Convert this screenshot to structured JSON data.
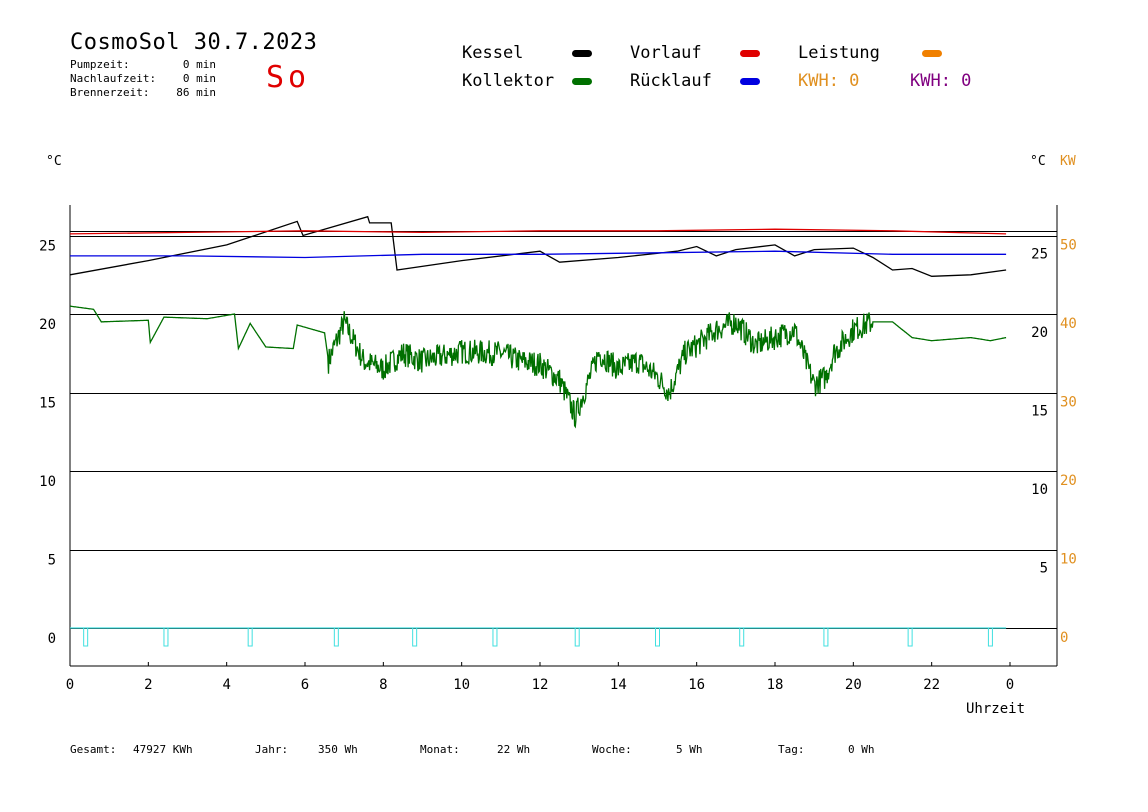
{
  "header": {
    "title": "CosmoSol 30.7.2023",
    "day_name": "So",
    "stats": [
      {
        "label": "Pumpzeit:",
        "value": "0 min"
      },
      {
        "label": "Nachlaufzeit:",
        "value": "0 min"
      },
      {
        "label": "Brennerzeit:",
        "value": "86 min"
      }
    ]
  },
  "legend": {
    "kessel": {
      "label": "Kessel",
      "color": "#000000"
    },
    "kollektor": {
      "label": "Kollektor",
      "color": "#007000"
    },
    "vorlauf": {
      "label": "Vorlauf",
      "color": "#e00000"
    },
    "ruecklauf": {
      "label": "Rücklauf",
      "color": "#0000e0"
    },
    "leistung": {
      "label": "Leistung",
      "color": "#f08000"
    },
    "kwh1": {
      "text": "KWH: 0",
      "color": "#e09020"
    },
    "kwh2": {
      "text": "KWH: 0",
      "color": "#800080"
    }
  },
  "axes": {
    "left_unit": "°C",
    "right_unit": "°C",
    "right_unit2": "KW",
    "x_label": "Uhrzeit"
  },
  "footer": [
    {
      "label": "Gesamt:",
      "value": "47927 KWh"
    },
    {
      "label": "Jahr:",
      "value": "350 Wh"
    },
    {
      "label": "Monat:",
      "value": "22 Wh"
    },
    {
      "label": "Woche:",
      "value": "5 Wh"
    },
    {
      "label": "Tag:",
      "value": "0 Wh"
    }
  ],
  "chart_data": {
    "type": "line",
    "x_unit": "hours",
    "xlim": [
      0,
      24
    ],
    "x_ticks": [
      "0",
      "2",
      "4",
      "6",
      "8",
      "10",
      "12",
      "14",
      "16",
      "18",
      "20",
      "22",
      "0"
    ],
    "y_left_ticks": [
      0,
      5,
      10,
      15,
      20,
      25
    ],
    "y_left_lim": [
      -2.5,
      27
    ],
    "y_right_ticks": [
      "5",
      "10",
      "15",
      "20",
      "25"
    ],
    "y_right_kw_ticks": [
      "0",
      "10",
      "20",
      "30",
      "40",
      "50"
    ],
    "grid": "horizontal",
    "series": [
      {
        "name": "Kessel",
        "color": "#000000",
        "x": [
          0,
          2,
          4,
          5.8,
          5.95,
          7.6,
          7.65,
          8.2,
          8.35,
          10,
          12,
          12.5,
          14,
          15.5,
          16,
          16.5,
          17,
          18,
          18.5,
          19,
          20,
          20.5,
          21,
          21.5,
          22,
          23,
          23.9
        ],
        "y": [
          22.5,
          23.4,
          24.4,
          25.9,
          25.0,
          26.2,
          25.8,
          25.8,
          22.8,
          23.4,
          24.0,
          23.3,
          23.6,
          24.0,
          24.3,
          23.7,
          24.1,
          24.4,
          23.7,
          24.1,
          24.2,
          23.6,
          22.8,
          22.9,
          22.4,
          22.5,
          22.8
        ]
      },
      {
        "name": "Vorlauf",
        "color": "#e00000",
        "x": [
          0,
          3,
          6,
          9,
          12,
          15,
          18,
          21,
          23.9
        ],
        "y": [
          25.1,
          25.2,
          25.3,
          25.2,
          25.3,
          25.3,
          25.4,
          25.3,
          25.1
        ]
      },
      {
        "name": "Rücklauf",
        "color": "#0000e0",
        "x": [
          0,
          3,
          6,
          9,
          12,
          15,
          18,
          21,
          23.9
        ],
        "y": [
          23.7,
          23.7,
          23.6,
          23.8,
          23.8,
          23.9,
          24.0,
          23.8,
          23.8
        ]
      },
      {
        "name": "Kollektor",
        "color": "#007000",
        "x": [
          0,
          0.6,
          0.8,
          2.0,
          2.05,
          2.4,
          3.5,
          4.2,
          4.3,
          4.6,
          5.0,
          5.7,
          5.8,
          6.5,
          6.6,
          7.0,
          7.5,
          8.0,
          8.5,
          9.0,
          10.0,
          11.0,
          11.5,
          12.0,
          12.5,
          12.9,
          13.2,
          13.5,
          14.0,
          14.5,
          15.0,
          15.3,
          15.7,
          16.0,
          16.5,
          17.0,
          17.5,
          18.0,
          18.5,
          19.0,
          19.3,
          19.5,
          20.0,
          20.5,
          21.0,
          21.5,
          22.0,
          23.0,
          23.5,
          23.9
        ],
        "y": [
          20.5,
          20.3,
          19.5,
          19.6,
          18.2,
          19.8,
          19.7,
          20.0,
          17.8,
          19.4,
          17.9,
          17.8,
          19.3,
          18.8,
          17.0,
          19.5,
          17.0,
          16.5,
          17.5,
          17.0,
          17.6,
          17.5,
          17.0,
          16.8,
          15.8,
          13.5,
          15.5,
          17.5,
          16.5,
          17.0,
          16.0,
          15.0,
          17.5,
          18.0,
          19.0,
          19.5,
          18.0,
          18.5,
          19.0,
          15.5,
          16.0,
          17.5,
          19.0,
          19.5,
          19.5,
          18.5,
          18.3,
          18.5,
          18.3,
          18.5
        ]
      },
      {
        "name": "Leistung",
        "color": "#40e0e0",
        "x": [
          0,
          23.9
        ],
        "y": [
          0,
          0
        ]
      }
    ]
  }
}
